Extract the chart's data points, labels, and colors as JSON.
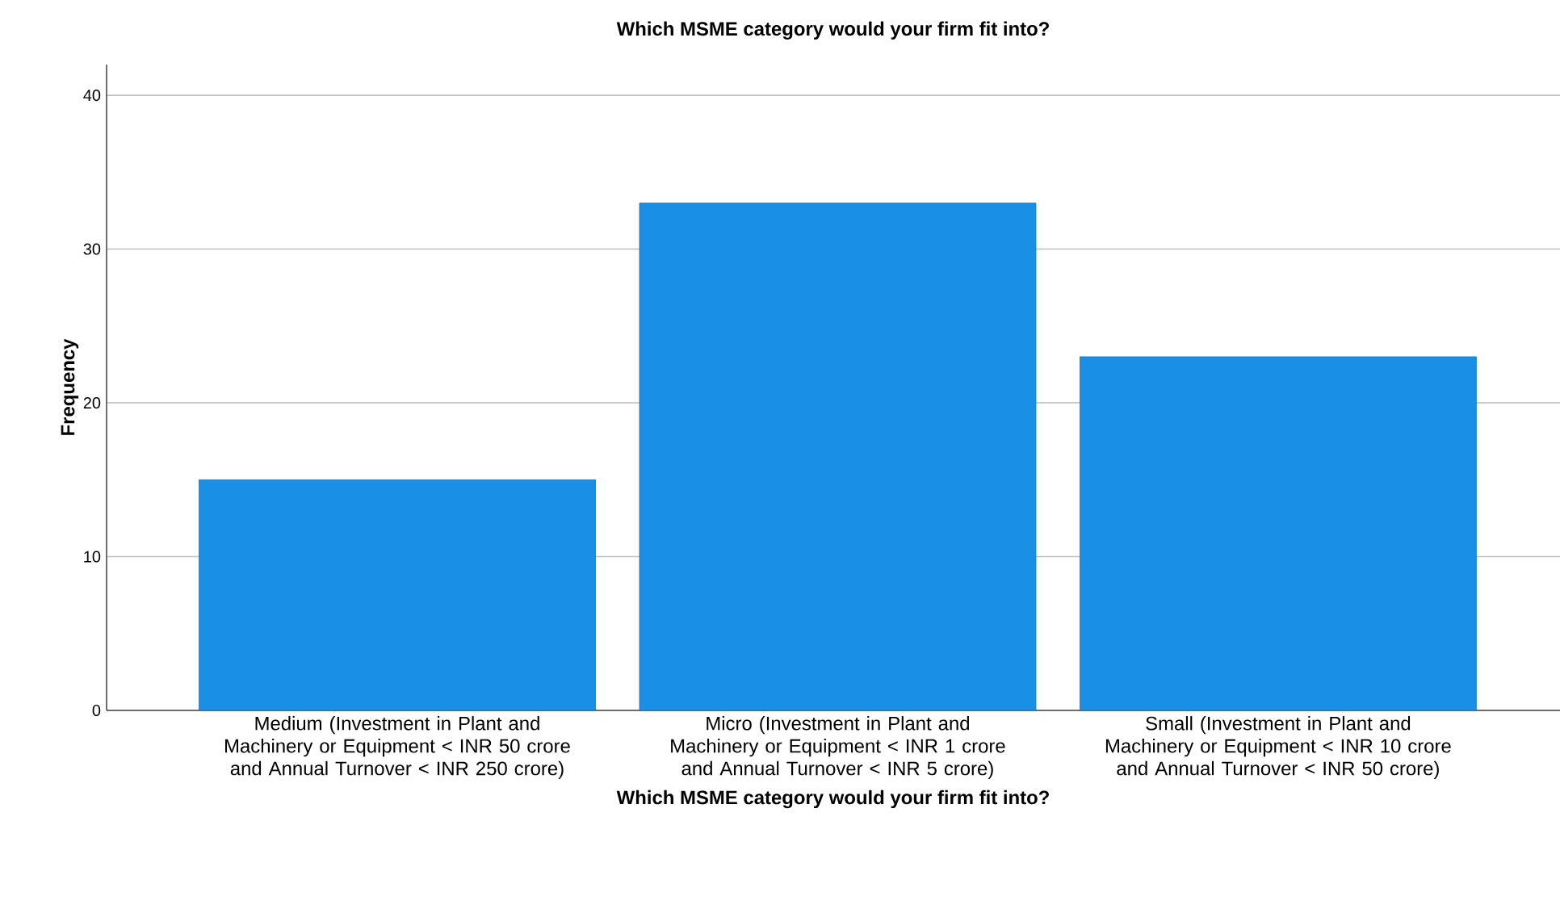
{
  "chart_data": {
    "type": "bar",
    "title": "Which MSME category would your firm fit into?",
    "xlabel": "Which MSME category would your firm fit into?",
    "ylabel": "Frequency",
    "categories": [
      "Medium (Investment in Plant and Machinery or Equipment < INR 50 crore and Annual Turnover < INR 250 crore)",
      "Micro (Investment in Plant and Machinery or Equipment < INR 1 crore and Annual Turnover < INR 5 crore)",
      "Small (Investment in Plant and Machinery or Equipment < INR 10 crore and Annual Turnover < INR 50 crore)"
    ],
    "values": [
      15,
      33,
      23
    ],
    "color": "#1990e6",
    "ylim": [
      0,
      42
    ],
    "yticks": [
      0,
      10,
      20,
      30,
      40
    ],
    "grid": "y"
  }
}
